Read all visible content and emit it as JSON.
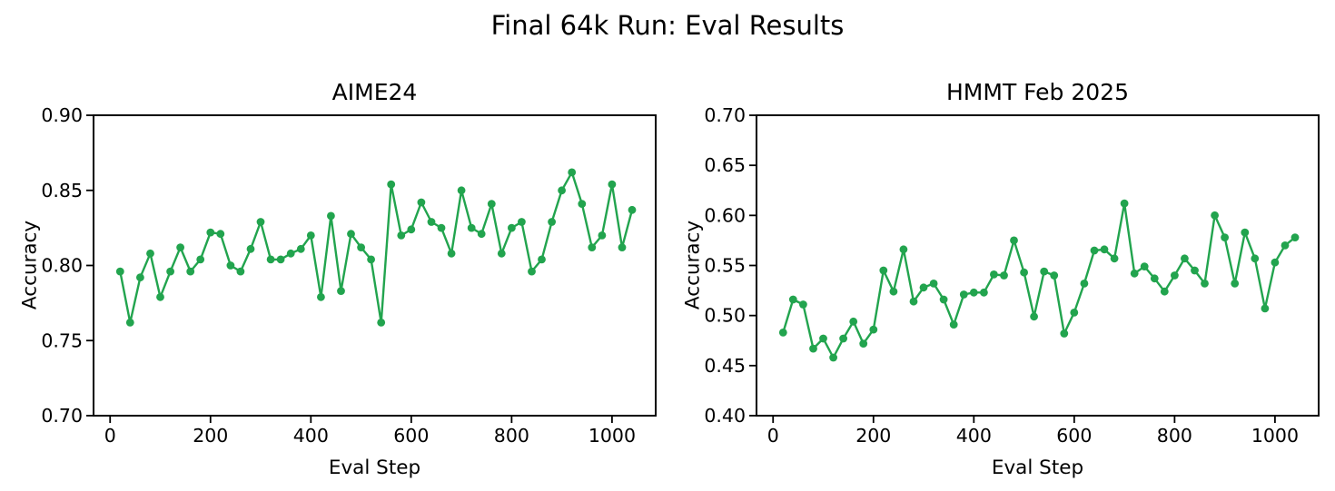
{
  "figure": {
    "suptitle": "Final 64k Run: Eval Results",
    "line_color": "#22a44e",
    "text_color": "#000000",
    "background_color": "#ffffff"
  },
  "chart_data": [
    {
      "type": "line",
      "title": "AIME24",
      "xlabel": "Eval Step",
      "ylabel": "Accuracy",
      "legend": null,
      "grid": false,
      "marker": "circle",
      "xlim": [
        -33,
        1087
      ],
      "ylim": [
        0.7,
        0.9
      ],
      "xticks": [
        0,
        200,
        400,
        600,
        800,
        1000
      ],
      "yticks": [
        0.7,
        0.75,
        0.8,
        0.85,
        0.9
      ],
      "x": [
        20,
        40,
        60,
        80,
        100,
        120,
        140,
        160,
        180,
        200,
        220,
        240,
        260,
        280,
        300,
        320,
        340,
        360,
        380,
        400,
        420,
        440,
        460,
        480,
        500,
        520,
        540,
        560,
        580,
        600,
        620,
        640,
        660,
        680,
        700,
        720,
        740,
        760,
        780,
        800,
        820,
        840,
        860,
        880,
        900,
        920,
        940,
        960,
        980,
        1000,
        1020,
        1040
      ],
      "y": [
        0.796,
        0.762,
        0.792,
        0.808,
        0.779,
        0.796,
        0.812,
        0.796,
        0.804,
        0.822,
        0.821,
        0.8,
        0.796,
        0.811,
        0.829,
        0.804,
        0.804,
        0.808,
        0.811,
        0.82,
        0.779,
        0.833,
        0.783,
        0.821,
        0.812,
        0.804,
        0.762,
        0.854,
        0.82,
        0.824,
        0.842,
        0.829,
        0.825,
        0.808,
        0.85,
        0.825,
        0.821,
        0.841,
        0.808,
        0.825,
        0.829,
        0.796,
        0.804,
        0.829,
        0.85,
        0.862,
        0.841,
        0.812,
        0.82,
        0.854,
        0.812,
        0.837
      ]
    },
    {
      "type": "line",
      "title": "HMMT Feb 2025",
      "xlabel": "Eval Step",
      "ylabel": "Accuracy",
      "legend": null,
      "grid": false,
      "marker": "circle",
      "xlim": [
        -33,
        1087
      ],
      "ylim": [
        0.4,
        0.7
      ],
      "xticks": [
        0,
        200,
        400,
        600,
        800,
        1000
      ],
      "yticks": [
        0.4,
        0.45,
        0.5,
        0.55,
        0.6,
        0.65,
        0.7
      ],
      "x": [
        20,
        40,
        60,
        80,
        100,
        120,
        140,
        160,
        180,
        200,
        220,
        240,
        260,
        280,
        300,
        320,
        340,
        360,
        380,
        400,
        420,
        440,
        460,
        480,
        500,
        520,
        540,
        560,
        580,
        600,
        620,
        640,
        660,
        680,
        700,
        720,
        740,
        760,
        780,
        800,
        820,
        840,
        860,
        880,
        900,
        920,
        940,
        960,
        980,
        1000,
        1020,
        1040
      ],
      "y": [
        0.483,
        0.516,
        0.511,
        0.467,
        0.477,
        0.458,
        0.477,
        0.494,
        0.472,
        0.486,
        0.545,
        0.524,
        0.566,
        0.514,
        0.528,
        0.532,
        0.516,
        0.491,
        0.521,
        0.523,
        0.523,
        0.541,
        0.54,
        0.575,
        0.543,
        0.499,
        0.544,
        0.54,
        0.482,
        0.503,
        0.532,
        0.565,
        0.566,
        0.557,
        0.612,
        0.542,
        0.549,
        0.537,
        0.524,
        0.54,
        0.557,
        0.545,
        0.532,
        0.6,
        0.578,
        0.532,
        0.583,
        0.557,
        0.507,
        0.553,
        0.57,
        0.578
      ]
    }
  ]
}
